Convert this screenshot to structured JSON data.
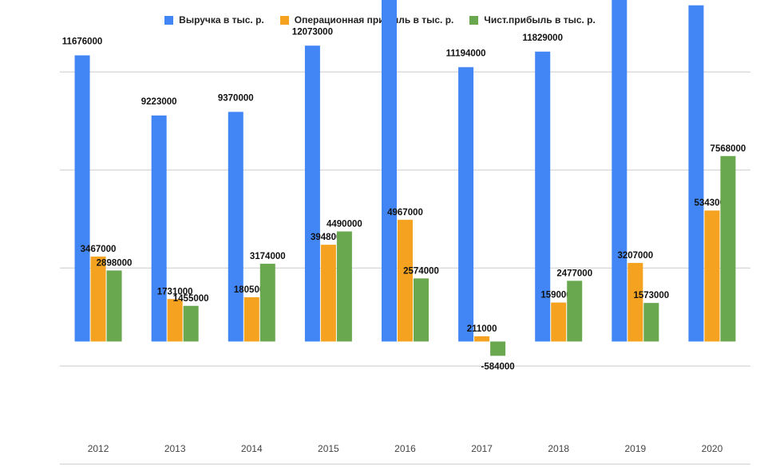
{
  "chart_data": {
    "type": "bar",
    "categories": [
      "2012",
      "2013",
      "2014",
      "2015",
      "2016",
      "2017",
      "2018",
      "2019",
      "2020"
    ],
    "series": [
      {
        "name": "Выручка в тыс. р.",
        "color": "#4285f4",
        "values": [
          11676000,
          9223000,
          9370000,
          12073000,
          14475000,
          11194000,
          11829000,
          13958000,
          13718000
        ]
      },
      {
        "name": "Операционная прибыль в тыс. р.",
        "color": "#f4a21f",
        "values": [
          3467000,
          1731000,
          1805000,
          3948000,
          4967000,
          211000,
          1590000,
          3207000,
          5343000
        ]
      },
      {
        "name": "Чист.прибыль в тыс. р.",
        "color": "#6aa84f",
        "values": [
          2898000,
          1455000,
          3174000,
          4490000,
          2574000,
          -584000,
          2477000,
          1573000,
          7568000
        ]
      }
    ],
    "ylim": [
      -5000000,
      15000000
    ],
    "grid": true,
    "legend_position": "top",
    "data_labels": true
  }
}
